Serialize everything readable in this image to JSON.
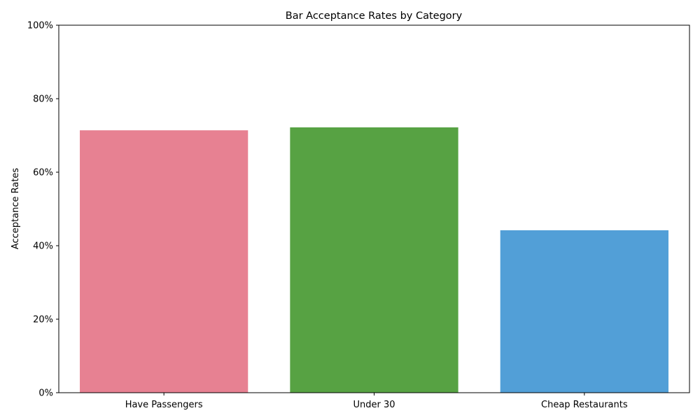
{
  "chart_data": {
    "type": "bar",
    "title": "Bar Acceptance Rates by Category",
    "xlabel": "",
    "ylabel": "Acceptance Rates",
    "categories": [
      "Have Passengers",
      "Under 30",
      "Cheap Restaurants"
    ],
    "values": [
      0.714,
      0.722,
      0.442
    ],
    "ylim": [
      0,
      1
    ],
    "yticks": [
      0,
      0.2,
      0.4,
      0.6,
      0.8,
      1.0
    ],
    "ytick_labels": [
      "0%",
      "20%",
      "40%",
      "60%",
      "80%",
      "100%"
    ],
    "colors": [
      "#e78192",
      "#57a243",
      "#529fd7"
    ],
    "grid": false,
    "legend": "none"
  }
}
